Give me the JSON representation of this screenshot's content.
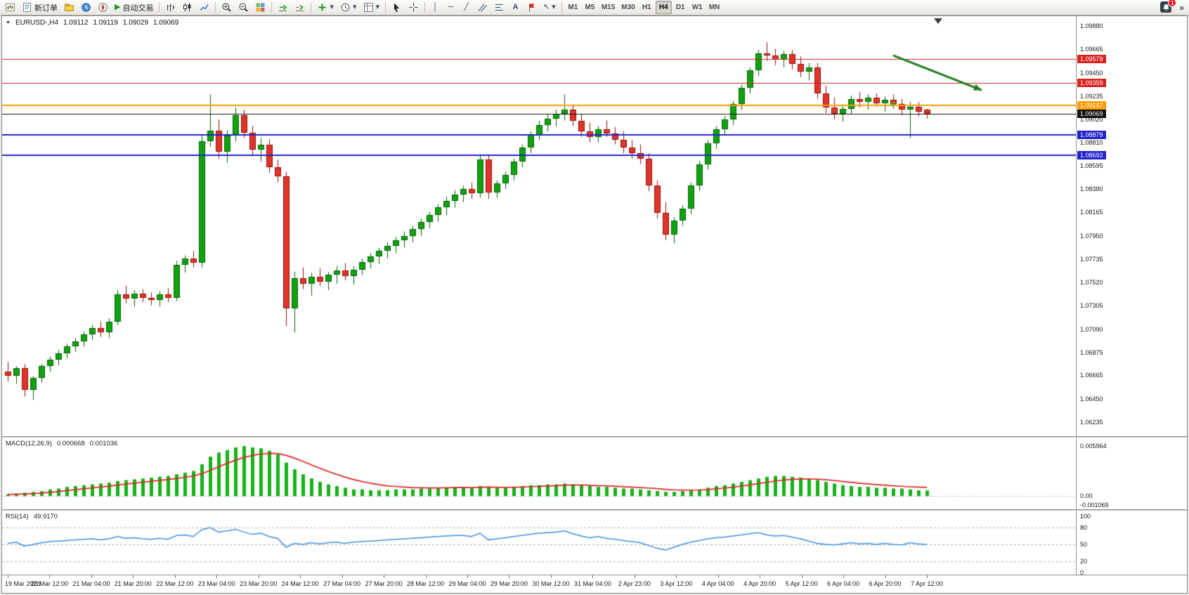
{
  "window": {
    "toolbar": {
      "new_order_label": "新订单",
      "autotrading_label": "自动交易",
      "timeframes": [
        "M1",
        "M5",
        "M15",
        "M30",
        "H1",
        "H4",
        "D1",
        "W1",
        "MN"
      ],
      "active_timeframe": "H4",
      "notification_count": "1"
    }
  },
  "icons": {
    "collapse": "▼",
    "play": "▶",
    "caret": "▾",
    "vline": "│",
    "hline": "─",
    "trendline": "╱",
    "text_tool": "A",
    "arrow_tool": "↖",
    "chevron": "»"
  },
  "chart": {
    "symbol_period": "EURUSD-,H4",
    "ohlc": {
      "open": "1.09112",
      "high": "1.09119",
      "low": "1.09029",
      "close": "1.09069"
    },
    "price_axis_labels": [
      "1.09880",
      "1.09665",
      "1.09450",
      "1.09235",
      "1.09020",
      "1.08810",
      "1.08595",
      "1.08380",
      "1.08165",
      "1.07950",
      "1.07735",
      "1.07520",
      "1.07305",
      "1.07090",
      "1.06875",
      "1.06665",
      "1.06450",
      "1.06235"
    ],
    "levels": [
      {
        "label": "1.09579",
        "price": 1.09579,
        "kind": "resistance"
      },
      {
        "label": "1.09359",
        "price": 1.09359,
        "kind": "resistance"
      },
      {
        "label": "1.09147",
        "price": 1.09147,
        "kind": "pivot"
      },
      {
        "label": "1.09069",
        "price": 1.09069,
        "kind": "current"
      },
      {
        "label": "1.08879",
        "price": 1.08879,
        "kind": "support"
      },
      {
        "label": "1.08693",
        "price": 1.08693,
        "kind": "support"
      }
    ],
    "level_colors": {
      "resistance": "#d92121",
      "pivot": "#ff9c00",
      "current": "#101010",
      "support": "#2222cc"
    },
    "time_axis_labels": [
      "19 Mar 2023",
      "20 Mar 12:00",
      "21 Mar 04:00",
      "21 Mar 20:00",
      "22 Mar 12:00",
      "23 Mar 04:00",
      "23 Mar 20:00",
      "24 Mar 12:00",
      "27 Mar 04:00",
      "27 Mar 20:00",
      "28 Mar 12:00",
      "29 Mar 04:00",
      "29 Mar 20:00",
      "30 Mar 12:00",
      "31 Mar 04:00",
      "2 Apr 23:00",
      "3 Apr 12:00",
      "4 Apr 04:00",
      "4 Apr 20:00",
      "5 Apr 12:00",
      "6 Apr 04:00",
      "6 Apr 20:00",
      "7 Apr 12:00"
    ],
    "annotation_arrow": {
      "from_bar": 105,
      "from_price": 1.0961,
      "to_bar": 115.5,
      "to_price": 1.0929,
      "color": "#1e7a1e"
    },
    "plus_marker": {
      "bar": 105,
      "price": 1.0916,
      "color": "#3ec43e"
    },
    "colors": {
      "bull": "#0fa30f",
      "bull_border": "#066006",
      "bear": "#e0342b",
      "bear_border": "#8f100a",
      "background": "#ffffff",
      "axis_text": "#1a1a1a"
    }
  },
  "chart_data": {
    "type": "candlestick",
    "symbol": "EURUSD-",
    "timeframe": "H4",
    "price_range": [
      1.06235,
      1.0988
    ],
    "candles_ohlc": [
      [
        1.067,
        1.0679,
        1.0661,
        1.0666
      ],
      [
        1.0666,
        1.0675,
        1.0659,
        1.0673
      ],
      [
        1.0673,
        1.0677,
        1.0647,
        1.0653
      ],
      [
        1.0653,
        1.0666,
        1.0644,
        1.0664
      ],
      [
        1.0664,
        1.0677,
        1.066,
        1.0675
      ],
      [
        1.0675,
        1.0684,
        1.067,
        1.0681
      ],
      [
        1.0681,
        1.069,
        1.0676,
        1.0687
      ],
      [
        1.0687,
        1.0696,
        1.0682,
        1.0693
      ],
      [
        1.0693,
        1.0701,
        1.0688,
        1.0698
      ],
      [
        1.0698,
        1.0707,
        1.0693,
        1.0704
      ],
      [
        1.0704,
        1.0713,
        1.0699,
        1.071
      ],
      [
        1.071,
        1.0716,
        1.0702,
        1.0706
      ],
      [
        1.0706,
        1.0719,
        1.0701,
        1.0716
      ],
      [
        1.0716,
        1.0745,
        1.0713,
        1.0741
      ],
      [
        1.0741,
        1.0749,
        1.0733,
        1.0737
      ],
      [
        1.0737,
        1.0745,
        1.073,
        1.0742
      ],
      [
        1.0742,
        1.0746,
        1.0734,
        1.0738
      ],
      [
        1.0738,
        1.0743,
        1.0731,
        1.0736
      ],
      [
        1.0736,
        1.0744,
        1.073,
        1.0741
      ],
      [
        1.0741,
        1.0747,
        1.0734,
        1.0738
      ],
      [
        1.0738,
        1.0772,
        1.0735,
        1.0768
      ],
      [
        1.0768,
        1.0777,
        1.0761,
        1.0774
      ],
      [
        1.0774,
        1.0781,
        1.0766,
        1.077
      ],
      [
        1.077,
        1.0887,
        1.0766,
        1.0882
      ],
      [
        1.0882,
        1.0925,
        1.0877,
        1.0892
      ],
      [
        1.0892,
        1.0902,
        1.0866,
        1.0872
      ],
      [
        1.0872,
        1.0892,
        1.0862,
        1.0887
      ],
      [
        1.0887,
        1.0913,
        1.0882,
        1.0906
      ],
      [
        1.0906,
        1.0911,
        1.0885,
        1.089
      ],
      [
        1.089,
        1.0896,
        1.0869,
        1.0874
      ],
      [
        1.0874,
        1.0885,
        1.0863,
        1.0879
      ],
      [
        1.0879,
        1.0884,
        1.0853,
        1.0858
      ],
      [
        1.0858,
        1.0865,
        1.0844,
        1.085
      ],
      [
        1.085,
        1.0854,
        1.0712,
        1.0728
      ],
      [
        1.0728,
        1.0762,
        1.0706,
        1.0756
      ],
      [
        1.0756,
        1.0766,
        1.0746,
        1.0751
      ],
      [
        1.0751,
        1.0761,
        1.074,
        1.0757
      ],
      [
        1.0757,
        1.0765,
        1.0749,
        1.0753
      ],
      [
        1.0753,
        1.0762,
        1.0745,
        1.0759
      ],
      [
        1.0759,
        1.0767,
        1.0751,
        1.0763
      ],
      [
        1.0763,
        1.077,
        1.0754,
        1.0758
      ],
      [
        1.0758,
        1.0767,
        1.075,
        1.0764
      ],
      [
        1.0764,
        1.0774,
        1.0759,
        1.0771
      ],
      [
        1.0771,
        1.0779,
        1.0765,
        1.0776
      ],
      [
        1.0776,
        1.0784,
        1.0769,
        1.0781
      ],
      [
        1.0781,
        1.0789,
        1.0774,
        1.0786
      ],
      [
        1.0786,
        1.0794,
        1.0779,
        1.0791
      ],
      [
        1.0791,
        1.0799,
        1.0784,
        1.0795
      ],
      [
        1.0795,
        1.0804,
        1.0789,
        1.0801
      ],
      [
        1.0801,
        1.0811,
        1.0795,
        1.0808
      ],
      [
        1.0808,
        1.0817,
        1.0802,
        1.0814
      ],
      [
        1.0814,
        1.0824,
        1.0808,
        1.0821
      ],
      [
        1.0821,
        1.0831,
        1.0814,
        1.0827
      ],
      [
        1.0827,
        1.0837,
        1.0821,
        1.0833
      ],
      [
        1.0833,
        1.0841,
        1.0826,
        1.0838
      ],
      [
        1.0838,
        1.0844,
        1.0829,
        1.0834
      ],
      [
        1.0834,
        1.087,
        1.083,
        1.0865
      ],
      [
        1.0865,
        1.0869,
        1.0829,
        1.0835
      ],
      [
        1.0835,
        1.0846,
        1.083,
        1.0843
      ],
      [
        1.0843,
        1.0854,
        1.0838,
        1.0851
      ],
      [
        1.0851,
        1.0866,
        1.0846,
        1.0863
      ],
      [
        1.0863,
        1.0879,
        1.0858,
        1.0876
      ],
      [
        1.0876,
        1.0891,
        1.0871,
        1.0888
      ],
      [
        1.0888,
        1.0901,
        1.0883,
        1.0897
      ],
      [
        1.0897,
        1.0907,
        1.0891,
        1.0903
      ],
      [
        1.0903,
        1.0911,
        1.0896,
        1.0907
      ],
      [
        1.0907,
        1.0925,
        1.0901,
        1.0911
      ],
      [
        1.0911,
        1.0916,
        1.0896,
        1.0901
      ],
      [
        1.0901,
        1.0907,
        1.0886,
        1.0891
      ],
      [
        1.0891,
        1.0899,
        1.0881,
        1.0886
      ],
      [
        1.0886,
        1.0896,
        1.0881,
        1.0893
      ],
      [
        1.0893,
        1.0901,
        1.0886,
        1.0889
      ],
      [
        1.0889,
        1.0895,
        1.0879,
        1.0883
      ],
      [
        1.0883,
        1.0891,
        1.0871,
        1.0876
      ],
      [
        1.0876,
        1.0883,
        1.0866,
        1.0871
      ],
      [
        1.0871,
        1.0879,
        1.0861,
        1.0866
      ],
      [
        1.0866,
        1.0871,
        1.0836,
        1.0841
      ],
      [
        1.0841,
        1.0846,
        1.0811,
        1.0816
      ],
      [
        1.0816,
        1.0826,
        1.0791,
        1.0796
      ],
      [
        1.0796,
        1.0812,
        1.0788,
        1.0809
      ],
      [
        1.0809,
        1.0823,
        1.0804,
        1.082
      ],
      [
        1.082,
        1.0844,
        1.0815,
        1.0841
      ],
      [
        1.0841,
        1.0864,
        1.0836,
        1.0861
      ],
      [
        1.0861,
        1.0883,
        1.0856,
        1.088
      ],
      [
        1.088,
        1.0896,
        1.0875,
        1.0893
      ],
      [
        1.0893,
        1.0905,
        1.0888,
        1.0902
      ],
      [
        1.0902,
        1.0919,
        1.0897,
        1.0916
      ],
      [
        1.0916,
        1.0934,
        1.0911,
        1.0931
      ],
      [
        1.0931,
        1.095,
        1.0926,
        1.0947
      ],
      [
        1.0947,
        1.0966,
        1.0942,
        1.0963
      ],
      [
        1.0963,
        1.0973,
        1.0956,
        1.0961
      ],
      [
        1.0961,
        1.0967,
        1.0952,
        1.0957
      ],
      [
        1.0957,
        1.0965,
        1.095,
        1.0962
      ],
      [
        1.0962,
        1.0966,
        1.0948,
        1.0953
      ],
      [
        1.0953,
        1.096,
        1.0941,
        1.0946
      ],
      [
        1.0946,
        1.0954,
        1.0938,
        1.095
      ],
      [
        1.095,
        1.0954,
        1.0921,
        1.0926
      ],
      [
        1.0926,
        1.0933,
        1.0908,
        1.0913
      ],
      [
        1.0913,
        1.0922,
        1.0902,
        1.0907
      ],
      [
        1.0907,
        1.0916,
        1.09,
        1.0912
      ],
      [
        1.0912,
        1.0924,
        1.0907,
        1.0921
      ],
      [
        1.0921,
        1.0927,
        1.0913,
        1.0918
      ],
      [
        1.0918,
        1.0925,
        1.0911,
        1.0922
      ],
      [
        1.0922,
        1.0926,
        1.0914,
        1.0917
      ],
      [
        1.0917,
        1.0923,
        1.0909,
        1.092
      ],
      [
        1.092,
        1.0925,
        1.0912,
        1.0916
      ],
      [
        1.0916,
        1.0921,
        1.0906,
        1.0911
      ],
      [
        1.0911,
        1.0918,
        1.0885,
        1.0914
      ],
      [
        1.0914,
        1.0918,
        1.0905,
        1.0909
      ],
      [
        1.09112,
        1.09119,
        1.09029,
        1.09069
      ]
    ],
    "indicators": [
      {
        "type": "macd",
        "label": "MACD(12,26,9)",
        "value_main": "0.000668",
        "value_signal": "0.001036",
        "axis_labels": [
          "0.005964",
          "0.00",
          "-0.001069"
        ],
        "range": [
          -0.001069,
          0.005964
        ],
        "histogram_color": "#16b216",
        "signal_color": "#e02424",
        "histogram": [
          0.0002,
          0.0003,
          0.0004,
          0.0005,
          0.0006,
          0.0008,
          0.0009,
          0.0011,
          0.0012,
          0.0013,
          0.0014,
          0.0015,
          0.0016,
          0.0018,
          0.0019,
          0.002,
          0.0021,
          0.0022,
          0.0023,
          0.0024,
          0.0026,
          0.0028,
          0.003,
          0.0038,
          0.0047,
          0.0052,
          0.0055,
          0.0058,
          0.00596,
          0.0058,
          0.0057,
          0.0054,
          0.005,
          0.004,
          0.0032,
          0.0026,
          0.0021,
          0.0017,
          0.0014,
          0.0012,
          0.001,
          0.0008,
          0.0008,
          0.0007,
          0.0007,
          0.0007,
          0.0008,
          0.0008,
          0.0008,
          0.0009,
          0.0009,
          0.001,
          0.001,
          0.0011,
          0.0011,
          0.001,
          0.0012,
          0.0011,
          0.001,
          0.001,
          0.0011,
          0.0012,
          0.0013,
          0.0013,
          0.0014,
          0.0014,
          0.0015,
          0.0014,
          0.0013,
          0.0012,
          0.0011,
          0.0011,
          0.001,
          0.0009,
          0.0009,
          0.0008,
          0.0007,
          0.0006,
          0.0005,
          0.0005,
          0.0006,
          0.0007,
          0.0008,
          0.001,
          0.0012,
          0.0013,
          0.0015,
          0.0017,
          0.0019,
          0.0021,
          0.0023,
          0.0024,
          0.0024,
          0.0023,
          0.0022,
          0.0021,
          0.0019,
          0.0017,
          0.0015,
          0.0013,
          0.0012,
          0.0011,
          0.0011,
          0.001,
          0.001,
          0.0009,
          0.0009,
          0.0008,
          0.0007,
          0.000668
        ],
        "signal": [
          0.0002,
          0.00022,
          0.00026,
          0.00031,
          0.00036,
          0.00045,
          0.00054,
          0.00065,
          0.00076,
          0.00087,
          0.00098,
          0.00108,
          0.00118,
          0.00131,
          0.00143,
          0.00154,
          0.00165,
          0.00176,
          0.00187,
          0.00198,
          0.0021,
          0.00224,
          0.00239,
          0.00267,
          0.00308,
          0.0035,
          0.0039,
          0.00428,
          0.00461,
          0.00485,
          0.00502,
          0.00509,
          0.00507,
          0.00486,
          0.00453,
          0.00414,
          0.00373,
          0.00333,
          0.00294,
          0.00259,
          0.00227,
          0.00198,
          0.00174,
          0.00153,
          0.00137,
          0.00123,
          0.00115,
          0.00108,
          0.00102,
          0.001,
          0.00098,
          0.00098,
          0.00099,
          0.00101,
          0.00103,
          0.00102,
          0.00106,
          0.00107,
          0.00105,
          0.00104,
          0.00105,
          0.00108,
          0.00113,
          0.00116,
          0.00121,
          0.00125,
          0.0013,
          0.00132,
          0.00132,
          0.00129,
          0.00125,
          0.00122,
          0.00118,
          0.00112,
          0.00108,
          0.00102,
          0.00096,
          0.00089,
          0.00081,
          0.00075,
          0.00072,
          0.00071,
          0.00073,
          0.00078,
          0.00087,
          0.00096,
          0.00106,
          0.00119,
          0.00133,
          0.00149,
          0.00165,
          0.0018,
          0.00192,
          0.002,
          0.00204,
          0.00205,
          0.00202,
          0.00196,
          0.00186,
          0.00175,
          0.00164,
          0.00154,
          0.00145,
          0.00137,
          0.0013,
          0.00123,
          0.00117,
          0.00111,
          0.00107,
          0.00104
        ]
      },
      {
        "type": "rsi",
        "label": "RSI(14)",
        "value": "49.9170",
        "axis_labels": [
          "100",
          "80",
          "50",
          "20",
          "0"
        ],
        "levels": [
          80,
          50,
          20
        ],
        "range": [
          0,
          100
        ],
        "line_color": "#3e8ede",
        "series": [
          52,
          54,
          47,
          50,
          53,
          55,
          56,
          57,
          58,
          59,
          60,
          58,
          60,
          64,
          61,
          62,
          60,
          59,
          61,
          59,
          66,
          67,
          64,
          76,
          80,
          72,
          74,
          77,
          72,
          68,
          70,
          64,
          61,
          45,
          52,
          50,
          53,
          51,
          53,
          54,
          52,
          54,
          55,
          56,
          57,
          58,
          59,
          60,
          61,
          62,
          63,
          64,
          65,
          66,
          66,
          64,
          70,
          58,
          60,
          62,
          64,
          66,
          68,
          70,
          71,
          72,
          74,
          69,
          65,
          62,
          64,
          61,
          59,
          57,
          55,
          53,
          48,
          43,
          40,
          45,
          50,
          54,
          57,
          60,
          62,
          63,
          65,
          67,
          69,
          71,
          67,
          65,
          66,
          63,
          60,
          56,
          52,
          50,
          49,
          51,
          53,
          51,
          52,
          50,
          52,
          50,
          49,
          53,
          51,
          49.92
        ]
      }
    ]
  }
}
